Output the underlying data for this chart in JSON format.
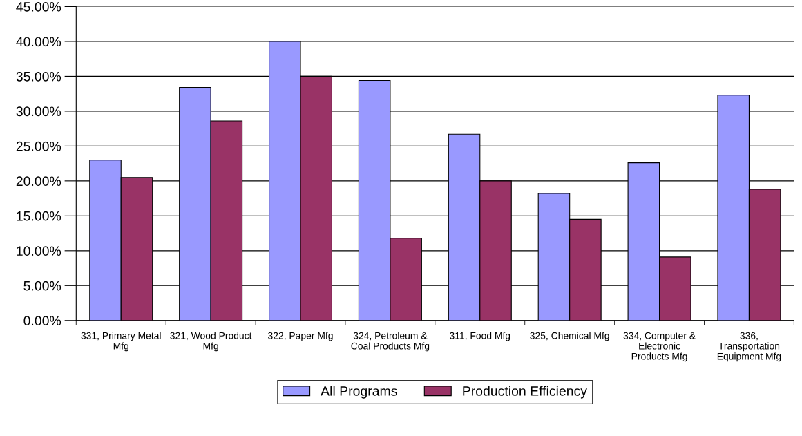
{
  "chart_data": {
    "type": "bar",
    "categories": [
      "331, Primary Metal Mfg",
      "321, Wood Product Mfg",
      "322, Paper Mfg",
      "324, Petroleum & Coal Products Mfg",
      "311, Food Mfg",
      "325, Chemical Mfg",
      "334, Computer & Electronic Products Mfg",
      "336, Transportation Equipment Mfg"
    ],
    "series": [
      {
        "name": "All Programs",
        "color": "#9999ff",
        "values": [
          23.0,
          33.4,
          40.0,
          34.4,
          26.7,
          18.2,
          22.6,
          32.3
        ]
      },
      {
        "name": "Production Efficiency",
        "color": "#993366",
        "values": [
          20.5,
          28.6,
          35.0,
          11.8,
          20.0,
          14.5,
          9.1,
          18.8
        ]
      }
    ],
    "ylim": [
      0,
      45
    ],
    "yticks": [
      {
        "value": 0,
        "label": "0.00%"
      },
      {
        "value": 5,
        "label": "5.00%"
      },
      {
        "value": 10,
        "label": "10.00%"
      },
      {
        "value": 15,
        "label": "15.00%"
      },
      {
        "value": 20,
        "label": "20.00%"
      },
      {
        "value": 25,
        "label": "25.00%"
      },
      {
        "value": 30,
        "label": "30.00%"
      },
      {
        "value": 35,
        "label": "35.00%"
      },
      {
        "value": 40,
        "label": "40.00%"
      },
      {
        "value": 45,
        "label": "45.00%"
      }
    ],
    "grid": "y",
    "legend": "bottom"
  }
}
